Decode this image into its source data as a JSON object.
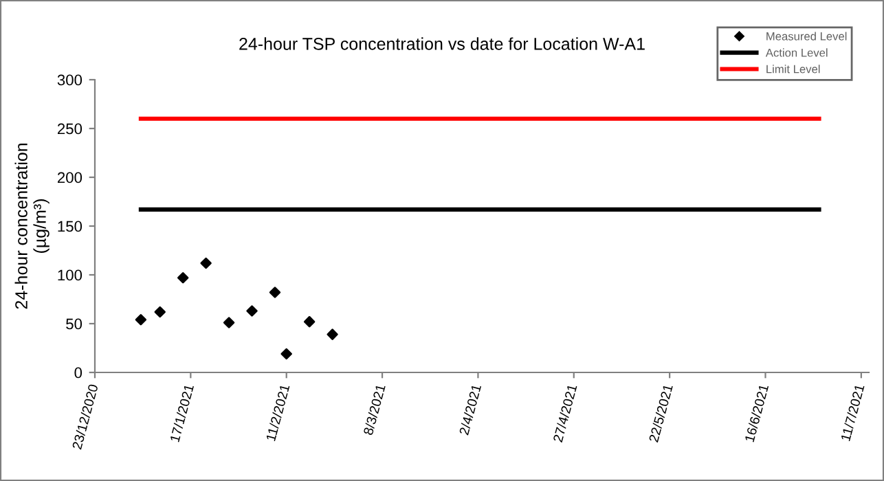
{
  "chart_data": {
    "type": "scatter",
    "title": "24-hour TSP concentration vs date for Location W-A1",
    "ylabel": "24-hour concentration\n(µg/m³)",
    "series": [
      {
        "name": "Measured Level",
        "color": "#000000",
        "marker": "diamond",
        "x": [
          "2021-01-04",
          "2021-01-09",
          "2021-01-15",
          "2021-01-21",
          "2021-01-27",
          "2021-02-02",
          "2021-02-08",
          "2021-02-11",
          "2021-02-17",
          "2021-02-23"
        ],
        "values": [
          54,
          62,
          97,
          112,
          51,
          63,
          82,
          19,
          52,
          39
        ]
      },
      {
        "name": "Action Level",
        "type": "line",
        "color": "#000000",
        "x": [
          "2021-01-04",
          "2021-06-30"
        ],
        "values": [
          167,
          167
        ]
      },
      {
        "name": "Limit Level",
        "type": "line",
        "color": "#ff0000",
        "x": [
          "2021-01-04",
          "2021-06-30"
        ],
        "values": [
          260,
          260
        ]
      }
    ],
    "xlim": [
      "2020-12-23",
      "2021-07-13"
    ],
    "xticks": [
      {
        "value": "2020-12-23",
        "label": "23/12/2020"
      },
      {
        "value": "2021-01-17",
        "label": "17/1/2021"
      },
      {
        "value": "2021-02-11",
        "label": "11/2/2021"
      },
      {
        "value": "2021-03-08",
        "label": "8/3/2021"
      },
      {
        "value": "2021-04-02",
        "label": "2/4/2021"
      },
      {
        "value": "2021-04-27",
        "label": "27/4/2021"
      },
      {
        "value": "2021-05-22",
        "label": "22/5/2021"
      },
      {
        "value": "2021-06-16",
        "label": "16/6/2021"
      },
      {
        "value": "2021-07-11",
        "label": "11/7/2021"
      }
    ],
    "ylim": [
      0,
      300
    ],
    "yticks": [
      0,
      50,
      100,
      150,
      200,
      250,
      300
    ],
    "grid": false,
    "legend": "top right"
  }
}
